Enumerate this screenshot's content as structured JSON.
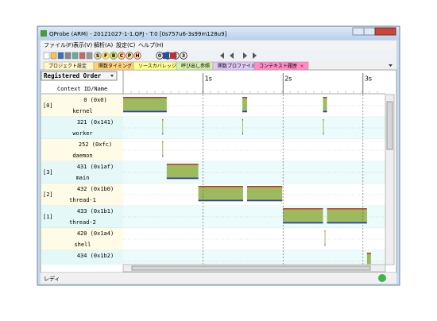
{
  "window": {
    "title": "QProbe (ARM) - 20121027-1-1.QPJ - T:0 [0s757u6-3s99m128u9]"
  },
  "menu": [
    "ファイル(F)",
    "表示(V)",
    "解析(A)",
    "設定(C)",
    "ヘルプ(H)"
  ],
  "toolbar": [
    "S",
    "F",
    "B",
    "C",
    "P",
    "H",
    "0",
    "1",
    "2",
    "3"
  ],
  "tabs": [
    "プロジェクト設定",
    "関数タイミング",
    "ソースカバレッジ",
    "呼び出し参照",
    "関数プロファイル",
    "コンテキスト履歴"
  ],
  "order_select": "Registered Order",
  "column_header": "Context ID/Name",
  "timeline": {
    "xlim": [
      0,
      3.28
    ],
    "ticks": [
      {
        "value": 1,
        "label": "1s"
      },
      {
        "value": 2,
        "label": "2s"
      },
      {
        "value": 3,
        "label": "3s"
      }
    ]
  },
  "rows": [
    {
      "core": "[0]",
      "id": "0 (0x0)",
      "name": "kernel",
      "segments": [
        [
          0,
          0.545
        ],
        [
          1.49,
          1.55
        ],
        [
          2.5,
          2.55
        ]
      ]
    },
    {
      "id": "321 (0x141)",
      "name": "worker",
      "segments": [
        [
          0.49,
          0.5
        ],
        [
          1.49,
          1.5
        ],
        [
          2.5,
          2.51
        ]
      ]
    },
    {
      "id": "252 (0xfc)",
      "name": "daemon",
      "segments": [
        [
          0.49,
          0.5
        ]
      ]
    },
    {
      "core": "[3]",
      "id": "431 (0x1af)",
      "name": "main",
      "segments": [
        [
          0.545,
          0.94
        ]
      ]
    },
    {
      "core": "[2]",
      "id": "432 (0x1b0)",
      "name": "thread-1",
      "segments": [
        [
          0.94,
          1.5
        ],
        [
          1.55,
          1.99
        ]
      ]
    },
    {
      "core": "[1]",
      "id": "433 (0x1b1)",
      "name": "thread-2",
      "segments": [
        [
          2.0,
          2.5
        ],
        [
          2.55,
          3.05
        ]
      ]
    },
    {
      "id": "420 (0x1a4)",
      "name": "shell",
      "segments": [
        [
          2.52,
          2.53
        ]
      ]
    },
    {
      "id": "434 (0x1b2)",
      "segments": [
        [
          3.05,
          3.1
        ]
      ]
    }
  ],
  "status": "レディ"
}
